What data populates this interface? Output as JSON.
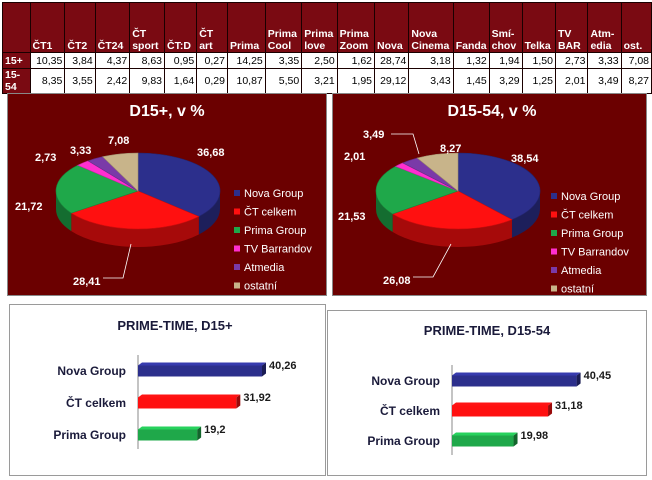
{
  "table": {
    "columns": [
      "",
      "ČT1",
      "ČT2",
      "ČT24",
      "ČT sport",
      "ČT:D",
      "ČT art",
      "Prima",
      "Prima Cool",
      "Prima love",
      "Prima Zoom",
      "Nova",
      "Nova Cinema",
      "Fanda",
      "Smí-chov",
      "Telka",
      "TV BAR",
      "Atm-edia",
      "ost."
    ],
    "rows": [
      {
        "label": "15+",
        "values": [
          "10,35",
          "3,84",
          "4,37",
          "8,63",
          "0,95",
          "0,27",
          "14,25",
          "3,35",
          "2,50",
          "1,62",
          "28,74",
          "3,18",
          "1,32",
          "1,94",
          "1,50",
          "2,73",
          "3,33",
          "7,08"
        ]
      },
      {
        "label": "15-54",
        "values": [
          "8,35",
          "3,55",
          "2,42",
          "9,83",
          "1,64",
          "0,29",
          "10,87",
          "5,50",
          "3,21",
          "1,95",
          "29,12",
          "3,43",
          "1,45",
          "3,29",
          "1,25",
          "2,01",
          "3,49",
          "8,27"
        ]
      }
    ]
  },
  "colors": {
    "header_bg": "#7a0a12",
    "panel_bg": "#6b0000",
    "nova": "#2c2f8c",
    "ct": "#ff1010",
    "prima": "#1fa84a",
    "barrandov": "#ff2fd0",
    "atmedia": "#7a3aa8",
    "ostatni": "#c8b48a"
  },
  "chart_data": [
    {
      "type": "pie",
      "title": "D15+, v %",
      "categories": [
        "Nova Group",
        "ČT celkem",
        "Prima Group",
        "TV Barrandov",
        "Atmedia",
        "ostatní"
      ],
      "values": [
        36.68,
        28.41,
        21.72,
        2.73,
        3.33,
        7.08
      ],
      "value_labels": [
        "36,68",
        "28,41",
        "21,72",
        "2,73",
        "3,33",
        "7,08"
      ],
      "legend": "right"
    },
    {
      "type": "pie",
      "title": "D15-54, v %",
      "categories": [
        "Nova Group",
        "ČT celkem",
        "Prima Group",
        "TV Barrandov",
        "Atmedia",
        "ostatní"
      ],
      "values": [
        38.54,
        26.08,
        21.53,
        2.01,
        3.49,
        8.27
      ],
      "value_labels": [
        "38,54",
        "26,08",
        "21,53",
        "2,01",
        "3,49",
        "8,27"
      ],
      "legend": "right"
    },
    {
      "type": "bar",
      "orientation": "horizontal",
      "title": "PRIME-TIME, D15+",
      "categories": [
        "Nova Group",
        "ČT celkem",
        "Prima Group"
      ],
      "values": [
        40.26,
        31.92,
        19.2
      ],
      "value_labels": [
        "40,26",
        "31,92",
        "19,2"
      ],
      "xlim": [
        0,
        55
      ]
    },
    {
      "type": "bar",
      "orientation": "horizontal",
      "title": "PRIME-TIME, D15-54",
      "categories": [
        "Nova Group",
        "ČT celkem",
        "Prima Group"
      ],
      "values": [
        40.45,
        31.18,
        19.98
      ],
      "value_labels": [
        "40,45",
        "31,18",
        "19,98"
      ],
      "xlim": [
        0,
        55
      ]
    }
  ]
}
